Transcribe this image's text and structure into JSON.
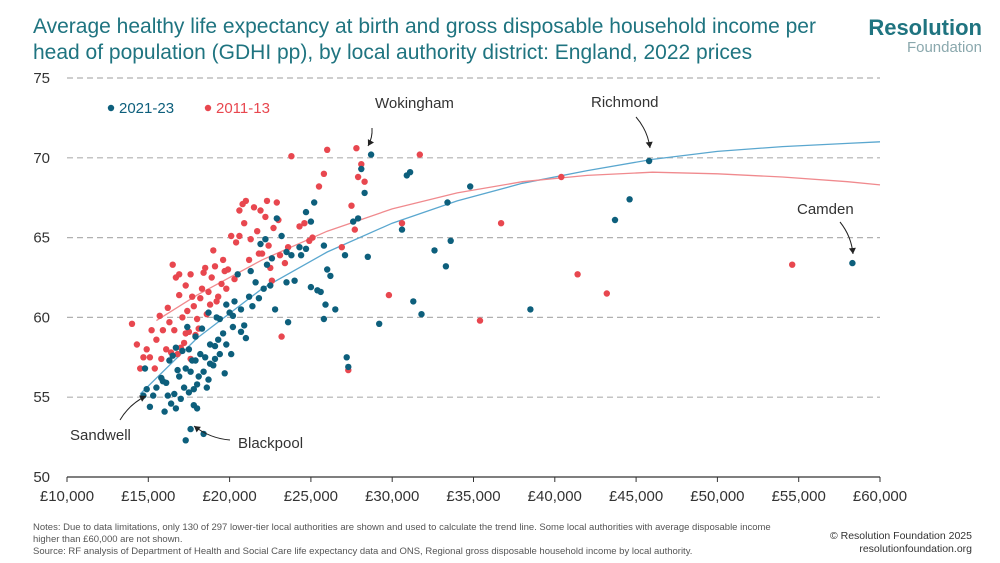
{
  "title": "Average healthy life expectancy at birth and gross disposable household income per head of population (GDHI pp), by local authority district: England, 2022 prices",
  "brand": {
    "name": "Resolution",
    "sub": "Foundation"
  },
  "colors": {
    "series_2021": "#0d5f7c",
    "series_2011": "#e8474f",
    "trend_2021": "#5aa7cf",
    "trend_2011": "#f08a8e",
    "grid": "#b0b0b0",
    "title": "#1f7480"
  },
  "notes": {
    "line1": "Notes: Due to data limitations, only 130 of 297 lower-tier local authorities are shown and used to calculate the trend line. Some local authorities with average disposable income higher than £60,000 are not shown.",
    "line2": "Source: RF analysis of Department of Health and Social Care life expectancy data and ONS, Regional gross disposable household income by local authority."
  },
  "credit": {
    "line1": "© Resolution Foundation 2025",
    "line2": "resolutionfoundation.org"
  },
  "chart_data": {
    "type": "scatter",
    "title": "Average healthy life expectancy at birth and gross disposable household income per head of population (GDHI pp), by local authority district: England, 2022 prices",
    "xlabel": "",
    "ylabel": "",
    "xlim": [
      10000,
      60000
    ],
    "ylim": [
      50,
      75
    ],
    "x_ticks": [
      10000,
      15000,
      20000,
      25000,
      30000,
      35000,
      40000,
      45000,
      50000,
      55000,
      60000
    ],
    "x_tick_labels": [
      "£10,000",
      "£15,000",
      "£20,000",
      "£25,000",
      "£30,000",
      "£35,000",
      "£40,000",
      "£45,000",
      "£50,000",
      "£55,000",
      "£60,000"
    ],
    "y_ticks": [
      50,
      55,
      60,
      65,
      70,
      75
    ],
    "y_tick_labels": [
      "50",
      "55",
      "60",
      "65",
      "70",
      "75"
    ],
    "grid": "horizontal dashed",
    "legend": {
      "placement": "top-left",
      "entries": [
        "2021-23",
        "2011-13"
      ]
    },
    "series": [
      {
        "name": "2021-23",
        "color": "#0d5f7c",
        "points": [
          [
            58300,
            63.4
          ],
          [
            45800,
            69.8
          ],
          [
            44600,
            67.4
          ],
          [
            43700,
            66.1
          ],
          [
            38500,
            60.5
          ],
          [
            34800,
            68.2
          ],
          [
            33600,
            64.8
          ],
          [
            33300,
            63.2
          ],
          [
            33400,
            67.2
          ],
          [
            32600,
            64.2
          ],
          [
            31800,
            60.2
          ],
          [
            31300,
            61.0
          ],
          [
            30900,
            68.9
          ],
          [
            31100,
            69.1
          ],
          [
            30600,
            65.5
          ],
          [
            29200,
            59.6
          ],
          [
            28700,
            70.2
          ],
          [
            28300,
            67.8
          ],
          [
            28100,
            69.3
          ],
          [
            28500,
            63.8
          ],
          [
            27900,
            66.2
          ],
          [
            27600,
            66.0
          ],
          [
            27300,
            56.9
          ],
          [
            27200,
            57.5
          ],
          [
            27100,
            63.9
          ],
          [
            26500,
            60.5
          ],
          [
            26200,
            62.6
          ],
          [
            25900,
            60.8
          ],
          [
            25800,
            59.9
          ],
          [
            25800,
            64.5
          ],
          [
            25600,
            61.6
          ],
          [
            25400,
            61.7
          ],
          [
            25000,
            61.9
          ],
          [
            25000,
            66.0
          ],
          [
            25200,
            67.2
          ],
          [
            24700,
            64.3
          ],
          [
            24400,
            63.9
          ],
          [
            24700,
            66.6
          ],
          [
            23800,
            63.9
          ],
          [
            23500,
            64.1
          ],
          [
            23500,
            62.2
          ],
          [
            23200,
            65.1
          ],
          [
            22900,
            66.2
          ],
          [
            22800,
            60.5
          ],
          [
            22300,
            63.3
          ],
          [
            22200,
            64.9
          ],
          [
            22100,
            61.8
          ],
          [
            21900,
            64.6
          ],
          [
            21800,
            61.2
          ],
          [
            21600,
            62.2
          ],
          [
            21400,
            60.7
          ],
          [
            21200,
            61.3
          ],
          [
            20900,
            59.5
          ],
          [
            20700,
            60.5
          ],
          [
            20500,
            62.7
          ],
          [
            20300,
            61.0
          ],
          [
            20200,
            60.1
          ],
          [
            20200,
            59.4
          ],
          [
            20000,
            60.3
          ],
          [
            19800,
            58.3
          ],
          [
            19800,
            60.8
          ],
          [
            19600,
            59.0
          ],
          [
            19400,
            57.7
          ],
          [
            19300,
            58.6
          ],
          [
            19100,
            58.2
          ],
          [
            19100,
            57.4
          ],
          [
            19000,
            57.0
          ],
          [
            18800,
            58.3
          ],
          [
            18700,
            60.3
          ],
          [
            18700,
            56.1
          ],
          [
            18600,
            55.6
          ],
          [
            18500,
            57.5
          ],
          [
            18400,
            56.6
          ],
          [
            18300,
            59.3
          ],
          [
            18200,
            57.7
          ],
          [
            18100,
            56.3
          ],
          [
            18000,
            55.8
          ],
          [
            17900,
            58.8
          ],
          [
            17800,
            55.5
          ],
          [
            17800,
            54.5
          ],
          [
            17700,
            57.3
          ],
          [
            17600,
            56.6
          ],
          [
            17600,
            53.0
          ],
          [
            17500,
            55.3
          ],
          [
            17500,
            58.0
          ],
          [
            17400,
            59.4
          ],
          [
            17300,
            56.8
          ],
          [
            17200,
            55.6
          ],
          [
            17100,
            57.9
          ],
          [
            17000,
            54.9
          ],
          [
            16900,
            56.3
          ],
          [
            16800,
            56.7
          ],
          [
            16700,
            54.3
          ],
          [
            16600,
            55.2
          ],
          [
            16500,
            57.6
          ],
          [
            16400,
            54.6
          ],
          [
            16300,
            57.3
          ],
          [
            16200,
            55.1
          ],
          [
            16100,
            55.9
          ],
          [
            16000,
            54.1
          ],
          [
            15800,
            56.2
          ],
          [
            15500,
            55.6
          ],
          [
            15300,
            55.1
          ],
          [
            15100,
            54.4
          ],
          [
            14900,
            55.5
          ],
          [
            14800,
            56.8
          ],
          [
            14700,
            55.1
          ],
          [
            17300,
            52.3
          ],
          [
            18400,
            52.7
          ],
          [
            18000,
            54.3
          ],
          [
            19700,
            56.5
          ],
          [
            20700,
            59.1
          ],
          [
            21300,
            62.9
          ],
          [
            22500,
            62.0
          ],
          [
            23600,
            59.7
          ],
          [
            24300,
            64.4
          ],
          [
            26000,
            63.0
          ],
          [
            19200,
            60.0
          ],
          [
            18800,
            57.1
          ],
          [
            17900,
            57.3
          ],
          [
            16700,
            58.1
          ],
          [
            15900,
            56.0
          ],
          [
            19400,
            59.9
          ],
          [
            21000,
            58.7
          ],
          [
            22600,
            63.7
          ],
          [
            24000,
            62.3
          ],
          [
            20100,
            57.7
          ]
        ]
      },
      {
        "name": "2011-13",
        "color": "#e8474f",
        "points": [
          [
            54600,
            63.3
          ],
          [
            43200,
            61.5
          ],
          [
            41400,
            62.7
          ],
          [
            40400,
            68.8
          ],
          [
            36700,
            65.9
          ],
          [
            35400,
            59.8
          ],
          [
            31700,
            70.2
          ],
          [
            30600,
            65.9
          ],
          [
            29800,
            61.4
          ],
          [
            28300,
            68.5
          ],
          [
            28100,
            69.6
          ],
          [
            27900,
            68.8
          ],
          [
            27800,
            70.6
          ],
          [
            27700,
            65.5
          ],
          [
            27500,
            67.0
          ],
          [
            27300,
            56.7
          ],
          [
            26900,
            64.4
          ],
          [
            26000,
            70.5
          ],
          [
            25800,
            69.0
          ],
          [
            25500,
            68.2
          ],
          [
            25100,
            65.0
          ],
          [
            24900,
            64.8
          ],
          [
            24600,
            65.9
          ],
          [
            24300,
            65.7
          ],
          [
            23800,
            70.1
          ],
          [
            23600,
            64.4
          ],
          [
            23400,
            63.4
          ],
          [
            23200,
            58.8
          ],
          [
            23000,
            66.1
          ],
          [
            22900,
            67.2
          ],
          [
            22700,
            65.6
          ],
          [
            22600,
            62.3
          ],
          [
            22400,
            64.5
          ],
          [
            22300,
            67.3
          ],
          [
            22200,
            66.3
          ],
          [
            22000,
            64.0
          ],
          [
            21900,
            66.7
          ],
          [
            21700,
            65.4
          ],
          [
            21500,
            66.9
          ],
          [
            21300,
            64.9
          ],
          [
            21200,
            63.6
          ],
          [
            21000,
            67.3
          ],
          [
            20900,
            65.9
          ],
          [
            20800,
            67.1
          ],
          [
            20600,
            65.1
          ],
          [
            20400,
            64.7
          ],
          [
            20300,
            62.4
          ],
          [
            20100,
            65.1
          ],
          [
            19900,
            63.0
          ],
          [
            19800,
            61.8
          ],
          [
            19600,
            63.6
          ],
          [
            19500,
            62.1
          ],
          [
            19300,
            61.3
          ],
          [
            19100,
            63.2
          ],
          [
            19000,
            64.2
          ],
          [
            18900,
            62.5
          ],
          [
            18700,
            61.6
          ],
          [
            18600,
            60.2
          ],
          [
            18400,
            62.8
          ],
          [
            18300,
            61.8
          ],
          [
            18100,
            59.3
          ],
          [
            18000,
            59.9
          ],
          [
            17900,
            58.9
          ],
          [
            17800,
            60.7
          ],
          [
            17700,
            61.3
          ],
          [
            17600,
            57.4
          ],
          [
            17500,
            59.1
          ],
          [
            17400,
            60.4
          ],
          [
            17300,
            62.0
          ],
          [
            17200,
            58.4
          ],
          [
            17100,
            60.0
          ],
          [
            17000,
            58.1
          ],
          [
            16900,
            61.4
          ],
          [
            16800,
            57.7
          ],
          [
            16700,
            62.5
          ],
          [
            16600,
            59.2
          ],
          [
            16500,
            63.3
          ],
          [
            16400,
            57.8
          ],
          [
            16300,
            59.7
          ],
          [
            16200,
            60.6
          ],
          [
            16100,
            58.0
          ],
          [
            15900,
            59.2
          ],
          [
            15800,
            57.4
          ],
          [
            15700,
            60.1
          ],
          [
            15500,
            58.6
          ],
          [
            15400,
            56.8
          ],
          [
            15200,
            59.2
          ],
          [
            15100,
            57.5
          ],
          [
            14900,
            58.0
          ],
          [
            14700,
            57.5
          ],
          [
            14500,
            56.8
          ],
          [
            14300,
            58.3
          ],
          [
            14000,
            59.6
          ],
          [
            17600,
            62.7
          ],
          [
            18200,
            61.2
          ],
          [
            19700,
            62.9
          ],
          [
            20600,
            66.7
          ],
          [
            21800,
            64.0
          ],
          [
            22500,
            63.1
          ],
          [
            23100,
            63.9
          ],
          [
            16900,
            62.7
          ],
          [
            18500,
            63.1
          ],
          [
            19200,
            61.0
          ],
          [
            17300,
            59.0
          ],
          [
            18800,
            60.8
          ]
        ]
      }
    ],
    "trend_lines": [
      {
        "name": "2021-23 trend",
        "color": "#5aa7cf",
        "x": [
          14500,
          18000,
          22000,
          26000,
          30000,
          34000,
          38000,
          42000,
          46000,
          50000,
          54000,
          58000,
          60000
        ],
        "y": [
          55.2,
          58.7,
          61.8,
          64.1,
          65.9,
          67.3,
          68.4,
          69.2,
          69.9,
          70.4,
          70.7,
          70.9,
          71.0
        ]
      },
      {
        "name": "2011-13 trend",
        "color": "#f08a8e",
        "x": [
          15500,
          18000,
          22000,
          26000,
          30000,
          34000,
          38000,
          42000,
          46000,
          50000,
          54000,
          58000,
          60000
        ],
        "y": [
          59.8,
          61.4,
          63.6,
          65.4,
          66.8,
          67.8,
          68.5,
          68.9,
          69.1,
          69.0,
          68.8,
          68.5,
          68.3
        ]
      }
    ],
    "annotations": [
      {
        "text": "Wokingham",
        "x": 28700,
        "y": 70.2
      },
      {
        "text": "Richmond",
        "x": 45800,
        "y": 69.8
      },
      {
        "text": "Camden",
        "x": 58300,
        "y": 63.4
      },
      {
        "text": "Sandwell",
        "x": 14800,
        "y": 55.4
      },
      {
        "text": "Blackpool",
        "x": 17800,
        "y": 53.4
      }
    ]
  }
}
